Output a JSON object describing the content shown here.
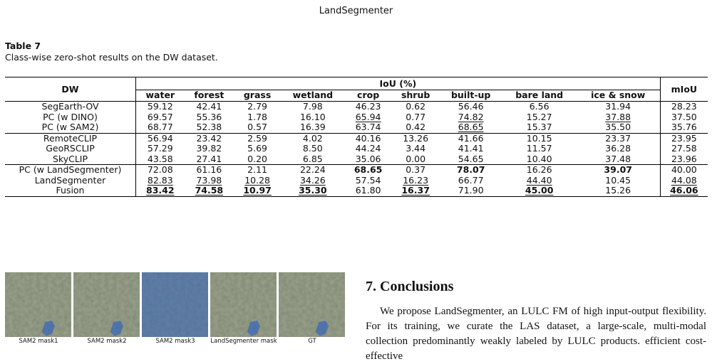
{
  "header": {
    "running_title": "LandSegmenter"
  },
  "table": {
    "label": "Table 7",
    "caption": "Class-wise zero-shot results on the DW dataset.",
    "row_header": "DW",
    "group_header": "IoU (%)",
    "last_header": "mIoU",
    "columns": [
      "water",
      "forest",
      "grass",
      "wetland",
      "crop",
      "shrub",
      "built-up",
      "bare land",
      "ice & snow"
    ],
    "groups": [
      {
        "rows": [
          {
            "name": "SegEarth-OV",
            "values": [
              "59.12",
              "42.41",
              "2.79",
              "7.98",
              "46.23",
              "0.62",
              "56.46",
              "6.56",
              "31.94"
            ],
            "miou": "28.23"
          },
          {
            "name": "PC (w DINO)",
            "values": [
              "69.57",
              "55.36",
              "1.78",
              "16.10",
              "65.94",
              "0.77",
              "74.82",
              "15.27",
              "37.88"
            ],
            "miou": "37.50"
          },
          {
            "name": "PC (w SAM2)",
            "values": [
              "68.77",
              "52.38",
              "0.57",
              "16.39",
              "63.74",
              "0.42",
              "68.65",
              "15.37",
              "35.50"
            ],
            "miou": "35.76"
          }
        ]
      },
      {
        "rows": [
          {
            "name": "RemoteCLIP",
            "values": [
              "56.94",
              "23.42",
              "2.59",
              "4.02",
              "40.16",
              "13.26",
              "41.66",
              "10.15",
              "23.37"
            ],
            "miou": "23.95"
          },
          {
            "name": "GeoRSCLIP",
            "values": [
              "57.29",
              "39.82",
              "5.69",
              "8.50",
              "44.24",
              "3.44",
              "41.41",
              "11.57",
              "36.28"
            ],
            "miou": "27.58"
          },
          {
            "name": "SkyCLIP",
            "values": [
              "43.58",
              "27.41",
              "0.20",
              "6.85",
              "35.06",
              "0.00",
              "54.65",
              "10.40",
              "37.48"
            ],
            "miou": "23.96"
          }
        ]
      },
      {
        "rows": [
          {
            "name": "PC (w LandSegmenter)",
            "values": [
              "72.08",
              "61.16",
              "2.11",
              "22.24",
              "68.65",
              "0.37",
              "78.07",
              "16.26",
              "39.07"
            ],
            "miou": "40.00"
          },
          {
            "name": "LandSegmenter",
            "values": [
              "82.83",
              "73.98",
              "10.28",
              "34.26",
              "57.54",
              "16.23",
              "66.77",
              "44.40",
              "10.45"
            ],
            "miou": "44.08"
          },
          {
            "name": "Fusion",
            "values": [
              "83.42",
              "74.58",
              "10.97",
              "35.30",
              "61.80",
              "16.37",
              "71.90",
              "45.00",
              "15.26"
            ],
            "miou": "46.06"
          }
        ]
      }
    ],
    "bold_cells": [
      "6-4",
      "6-6",
      "6-8",
      "8-0",
      "8-1",
      "8-2",
      "8-3",
      "8-5",
      "8-7",
      "8-9"
    ],
    "underline_cells": [
      "1-4",
      "1-6",
      "1-8",
      "2-6",
      "7-0",
      "7-1",
      "7-2",
      "7-3",
      "7-5",
      "7-7",
      "7-9",
      "8-0",
      "8-1",
      "8-2",
      "8-3",
      "8-5",
      "8-7",
      "8-9"
    ]
  },
  "figure": {
    "panels": [
      {
        "label": "SAM2 mask1",
        "overlay": "small-patch"
      },
      {
        "label": "SAM2 mask2",
        "overlay": "small-patch"
      },
      {
        "label": "SAM2 mask3",
        "overlay": "full"
      },
      {
        "label": "LandSegmenter mask",
        "overlay": "small-patch"
      },
      {
        "label": "GT",
        "overlay": "small-patch"
      }
    ],
    "base_color": "#7f8870",
    "mask_color": "#3a67b8"
  },
  "section": {
    "number_title": "7. Conclusions",
    "paragraph": "We propose LandSegmenter, an LULC FM of high input-output flexibility. For its training, we curate the LAS dataset, a large-scale, multi-modal collection predominantly weakly labeled by LULC products. efficient cost-effective"
  }
}
